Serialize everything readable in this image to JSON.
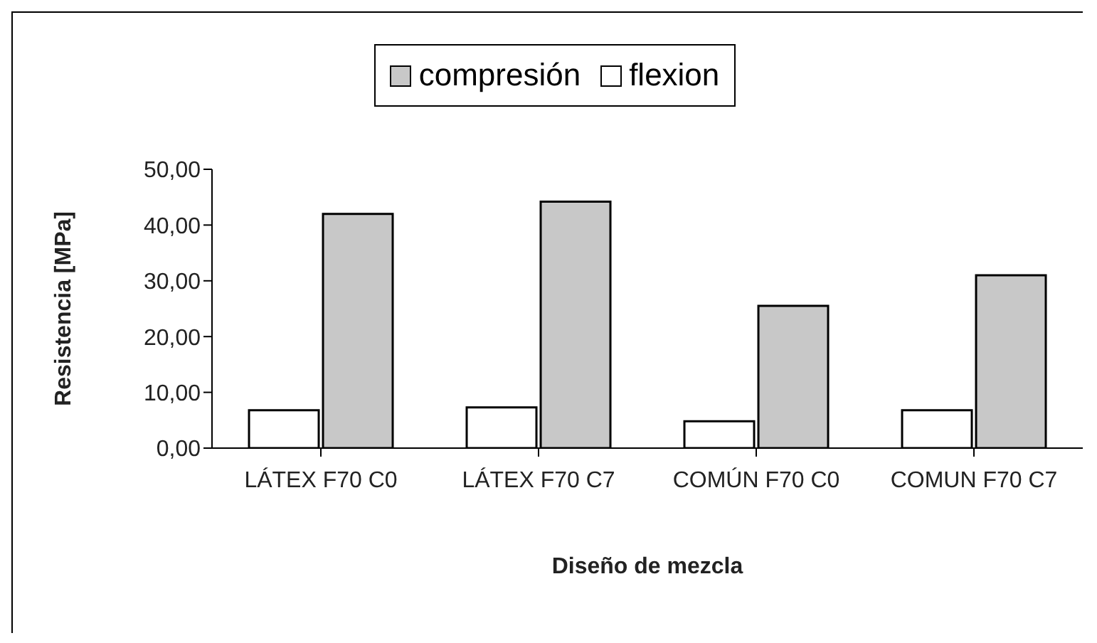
{
  "chart_data": {
    "type": "bar",
    "xlabel": "Diseño de mezcla",
    "ylabel": "Resistencia [MPa]",
    "categories": [
      "LÁTEX F70 C0",
      "LÁTEX F70 C7",
      "COMÚN F70 C0",
      "COMUN F70 C7"
    ],
    "series": [
      {
        "name": "flexion",
        "color": "#ffffff",
        "values": [
          6.8,
          7.3,
          4.8,
          6.8
        ]
      },
      {
        "name": "compresión",
        "color": "#c8c8c8",
        "values": [
          42.0,
          44.2,
          25.5,
          31.0
        ]
      }
    ],
    "ylim": [
      0,
      50
    ],
    "yticks": [
      {
        "value": 0,
        "label": "0,00"
      },
      {
        "value": 10,
        "label": "10,00"
      },
      {
        "value": 20,
        "label": "20,00"
      },
      {
        "value": 30,
        "label": "30,00"
      },
      {
        "value": 40,
        "label": "40,00"
      },
      {
        "value": 50,
        "label": "50,00"
      }
    ],
    "grid": false,
    "legend": "top"
  }
}
